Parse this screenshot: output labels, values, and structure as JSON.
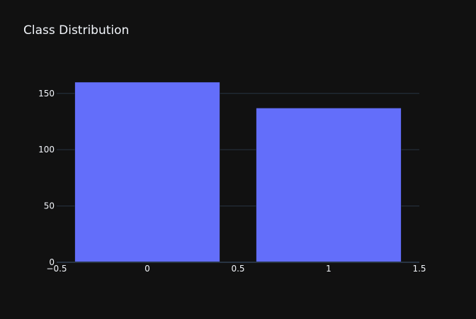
{
  "chart_data": {
    "type": "bar",
    "title": "Class Distribution",
    "x": [
      0,
      1
    ],
    "values": [
      160,
      137
    ],
    "bar_width": 0.8,
    "xlim": [
      -0.5,
      1.5
    ],
    "ylim": [
      0,
      170
    ],
    "x_ticks": [
      -0.5,
      0,
      0.5,
      1,
      1.5
    ],
    "x_tick_labels": [
      "−0.5",
      "0",
      "0.5",
      "1",
      "1.5"
    ],
    "y_ticks": [
      0,
      50,
      100,
      150
    ],
    "y_tick_labels": [
      "0",
      "50",
      "100",
      "150"
    ],
    "grid": true,
    "colors": {
      "bar": "#636efa",
      "background": "#111111",
      "grid": "#283442",
      "text": "#f2f5fa"
    }
  }
}
